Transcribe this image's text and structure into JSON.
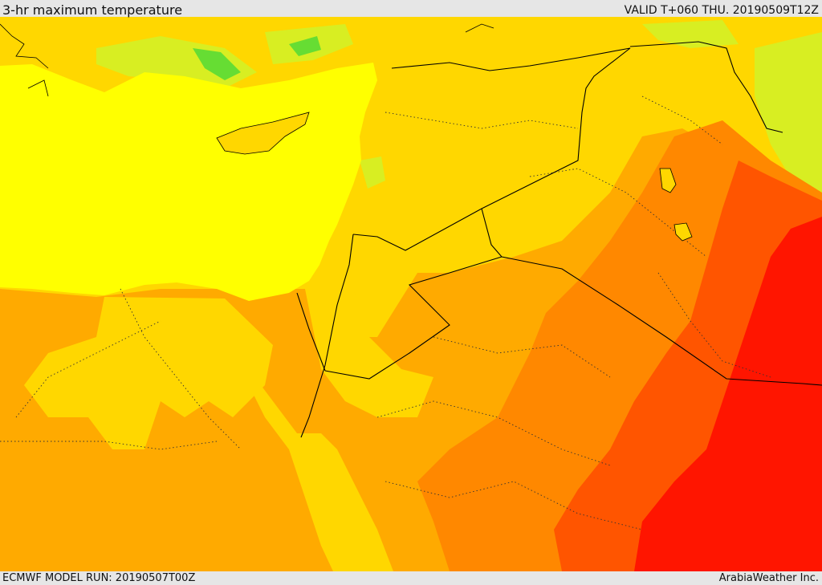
{
  "header": {
    "title": "3-hr maximum temperature",
    "valid": "VALID T+060 THU. 20190509T12Z"
  },
  "footer": {
    "model_run": "ECMWF MODEL RUN: 20190507T00Z",
    "credit": "ArabiaWeather Inc."
  },
  "colors": {
    "sea": "#ffff00",
    "green": "#66dd33",
    "yellow_green": "#d8ee22",
    "light_orange": "#ffd700",
    "orange": "#ffaa00",
    "dark_orange": "#ff8800",
    "red_orange": "#ff5500",
    "red": "#ff1500",
    "border": "#000000",
    "header_bg": "#e6e6e6"
  }
}
